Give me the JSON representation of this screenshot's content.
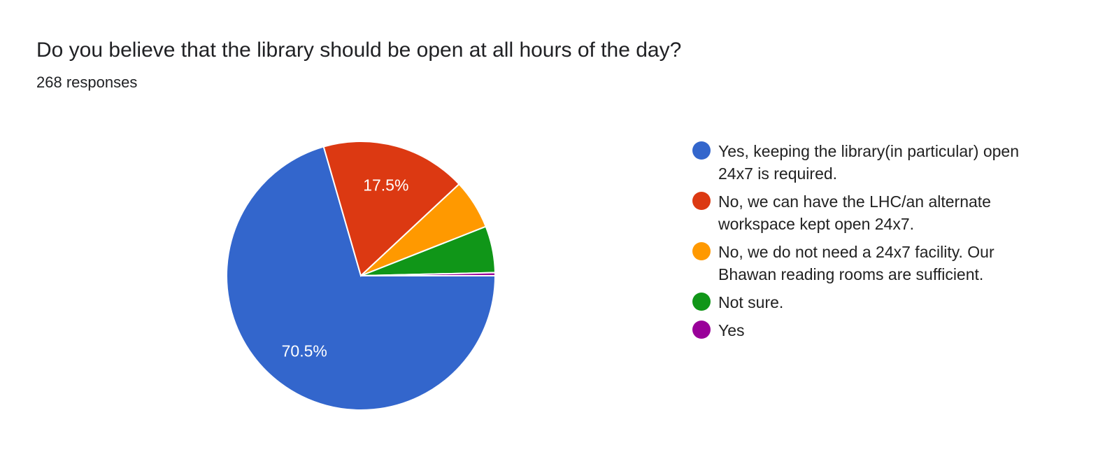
{
  "question": "Do you believe that the library should be open at all hours of the day?",
  "response_count": "268 responses",
  "chart_data": {
    "type": "pie",
    "title": "Do you believe that the library should be open at all hours of the day?",
    "total": 268,
    "legend_position": "right",
    "slices": [
      {
        "label": "Yes, keeping the library(in particular) open 24x7 is required.",
        "value": 189,
        "percent": 70.5,
        "percent_label": "70.5%",
        "color": "#3366cc"
      },
      {
        "label": "No, we can have the LHC/an alternate workspace kept open 24x7.",
        "value": 47,
        "percent": 17.5,
        "percent_label": "17.5%",
        "color": "#dc3912"
      },
      {
        "label": "No, we do not need a 24x7 facility. Our Bhawan reading rooms are sufficient.",
        "value": 16,
        "percent": 6.0,
        "color": "#ff9900"
      },
      {
        "label": "Not sure.",
        "value": 15,
        "percent": 5.6,
        "color": "#109618"
      },
      {
        "label": "Yes",
        "value": 1,
        "percent": 0.4,
        "color": "#990099"
      }
    ]
  }
}
